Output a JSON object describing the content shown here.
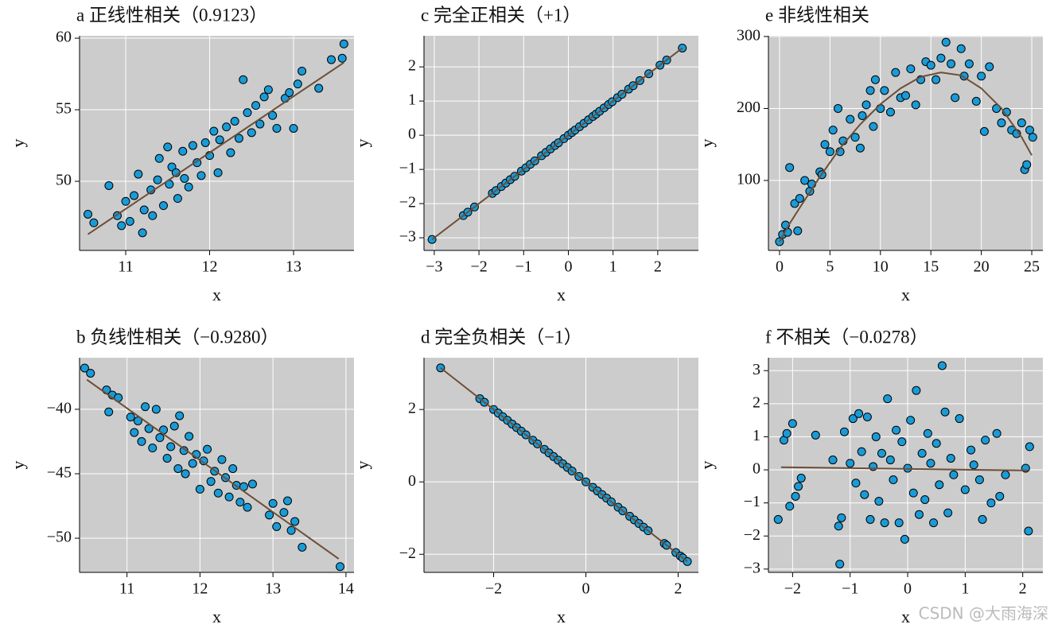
{
  "chart_data": [
    {
      "type": "scatter",
      "title": "a  正线性相关（0.9123）",
      "x_label": "x",
      "y_label": "y",
      "x": [
        10.55,
        10.62,
        10.8,
        10.9,
        10.95,
        11.0,
        11.05,
        11.1,
        11.15,
        11.2,
        11.22,
        11.3,
        11.32,
        11.38,
        11.4,
        11.45,
        11.5,
        11.52,
        11.55,
        11.6,
        11.62,
        11.68,
        11.7,
        11.75,
        11.8,
        11.85,
        11.9,
        11.95,
        12.0,
        12.05,
        12.1,
        12.12,
        12.2,
        12.25,
        12.3,
        12.35,
        12.4,
        12.45,
        12.5,
        12.55,
        12.6,
        12.65,
        12.7,
        12.75,
        12.8,
        12.9,
        12.95,
        13.0,
        13.05,
        13.1,
        13.3,
        13.45,
        13.58,
        13.6
      ],
      "values": [
        47.7,
        47.1,
        49.7,
        47.6,
        46.9,
        48.6,
        47.2,
        49.0,
        50.5,
        46.4,
        48.0,
        49.4,
        47.6,
        50.1,
        51.6,
        48.3,
        52.4,
        49.8,
        51.0,
        50.6,
        48.8,
        52.1,
        50.2,
        49.6,
        52.5,
        51.3,
        50.4,
        52.7,
        51.8,
        53.5,
        50.6,
        52.9,
        53.8,
        52.0,
        54.2,
        53.0,
        57.1,
        54.8,
        53.4,
        55.3,
        54.0,
        55.9,
        56.4,
        54.6,
        53.7,
        55.8,
        56.2,
        53.7,
        56.8,
        57.7,
        56.5,
        58.5,
        58.6,
        59.6
      ],
      "fit": {
        "x": [
          10.55,
          13.6
        ],
        "values": [
          46.3,
          58.3
        ]
      },
      "color": "#1a9bd7",
      "edge_color": "#000000",
      "fit_color": "#6e4e37",
      "xlim": [
        10.45,
        13.72
      ],
      "ylim": [
        45.17,
        60.17
      ],
      "xticks": [
        11,
        12,
        13
      ],
      "yticks": [
        50,
        55,
        60
      ],
      "grid": true
    },
    {
      "type": "scatter",
      "title": "c  完全正相关（+1）",
      "x_label": "x",
      "y_label": "y",
      "x": [
        -3.05,
        -2.35,
        -2.25,
        -2.1,
        -1.7,
        -1.62,
        -1.5,
        -1.4,
        -1.3,
        -1.2,
        -1.05,
        -0.95,
        -0.85,
        -0.75,
        -0.6,
        -0.5,
        -0.4,
        -0.3,
        -0.22,
        -0.1,
        0.0,
        0.08,
        0.15,
        0.25,
        0.35,
        0.45,
        0.55,
        0.62,
        0.7,
        0.8,
        0.9,
        0.98,
        1.1,
        1.2,
        1.35,
        1.45,
        1.6,
        1.8,
        2.05,
        2.2,
        2.55
      ],
      "values": [
        -3.05,
        -2.35,
        -2.25,
        -2.1,
        -1.7,
        -1.62,
        -1.5,
        -1.4,
        -1.3,
        -1.2,
        -1.05,
        -0.95,
        -0.85,
        -0.75,
        -0.6,
        -0.5,
        -0.4,
        -0.3,
        -0.22,
        -0.1,
        0.0,
        0.08,
        0.15,
        0.25,
        0.35,
        0.45,
        0.55,
        0.62,
        0.7,
        0.8,
        0.9,
        0.98,
        1.1,
        1.2,
        1.35,
        1.45,
        1.6,
        1.8,
        2.05,
        2.2,
        2.55
      ],
      "fit": {
        "x": [
          -3.05,
          2.55
        ],
        "values": [
          -3.05,
          2.55
        ]
      },
      "color": "#1a9bd7",
      "edge_color": "#000000",
      "fit_color": "#6e4e37",
      "xlim": [
        -3.23,
        2.91
      ],
      "ylim": [
        -3.37,
        2.91
      ],
      "xticks": [
        {
          "value": -3,
          "label": "−3"
        },
        {
          "value": -2,
          "label": "−2"
        },
        {
          "value": -1,
          "label": "−1"
        },
        0,
        1,
        2
      ],
      "yticks": [
        {
          "value": -3,
          "label": "−3"
        },
        {
          "value": -2,
          "label": "−2"
        },
        {
          "value": -1,
          "label": "−1"
        },
        0,
        1,
        2
      ],
      "grid": true
    },
    {
      "type": "scatter",
      "title": "e  非线性相关",
      "x_label": "x",
      "y_label": "y",
      "x": [
        0,
        0.3,
        0.6,
        0.8,
        1.0,
        1.5,
        1.8,
        2.0,
        2.5,
        3,
        3.2,
        4,
        4.2,
        4.5,
        5,
        5.3,
        5.8,
        6,
        6.3,
        7,
        7.5,
        8,
        8.2,
        8.6,
        9,
        9.3,
        9.5,
        10,
        10.4,
        11,
        11.5,
        12,
        12.5,
        13,
        13.5,
        14,
        14.5,
        15,
        15.5,
        16,
        16.5,
        17,
        17.4,
        18,
        18.3,
        18.8,
        19.5,
        20,
        20.3,
        20.8,
        21.5,
        22,
        22.5,
        23,
        23.5,
        24,
        24.3,
        24.5,
        24.8,
        25.1
      ],
      "values": [
        15,
        25,
        38,
        28,
        118,
        68,
        30,
        75,
        100,
        85,
        95,
        112,
        108,
        150,
        140,
        170,
        200,
        140,
        155,
        185,
        160,
        145,
        190,
        205,
        225,
        175,
        240,
        200,
        225,
        195,
        250,
        215,
        218,
        255,
        205,
        240,
        265,
        260,
        240,
        270,
        292,
        262,
        215,
        283,
        245,
        262,
        210,
        245,
        168,
        258,
        200,
        180,
        195,
        170,
        165,
        180,
        115,
        122,
        170,
        160
      ],
      "fit": {
        "x": [
          0,
          1,
          2,
          4,
          6,
          8,
          10,
          12,
          14,
          16,
          18,
          20,
          22,
          24,
          25
        ],
        "values": [
          15,
          40,
          62,
          105,
          145,
          178,
          206,
          228,
          244,
          250,
          246,
          228,
          200,
          160,
          135
        ]
      },
      "color": "#1a9bd7",
      "edge_color": "#000000",
      "fit_color": "#6e4e37",
      "xlim": [
        -1.1,
        26.1
      ],
      "ylim": [
        2.8,
        301
      ],
      "xticks": [
        0,
        5,
        10,
        15,
        20,
        25
      ],
      "yticks": [
        100,
        200,
        300
      ],
      "grid": true
    },
    {
      "type": "scatter",
      "title": "b  负线性相关（−0.9280）",
      "x_label": "x",
      "y_label": "y",
      "x": [
        10.42,
        10.5,
        10.72,
        10.75,
        10.8,
        10.88,
        11.05,
        11.1,
        11.15,
        11.2,
        11.25,
        11.3,
        11.35,
        11.4,
        11.45,
        11.5,
        11.55,
        11.6,
        11.65,
        11.7,
        11.72,
        11.78,
        11.8,
        11.85,
        11.9,
        11.95,
        12.0,
        12.05,
        12.1,
        12.15,
        12.2,
        12.25,
        12.3,
        12.35,
        12.4,
        12.45,
        12.5,
        12.55,
        12.6,
        12.65,
        12.72,
        12.95,
        13.0,
        13.05,
        13.15,
        13.2,
        13.25,
        13.3,
        13.4,
        13.92
      ],
      "values": [
        -36.8,
        -37.2,
        -38.5,
        -40.2,
        -38.9,
        -39.1,
        -40.6,
        -41.8,
        -40.9,
        -42.5,
        -39.8,
        -41.5,
        -43.0,
        -40.0,
        -42.2,
        -41.6,
        -43.8,
        -42.9,
        -41.3,
        -44.6,
        -40.5,
        -43.2,
        -45.0,
        -42.1,
        -44.2,
        -43.5,
        -46.2,
        -44.0,
        -43.1,
        -45.6,
        -44.8,
        -46.5,
        -43.9,
        -45.3,
        -46.8,
        -44.6,
        -45.9,
        -47.2,
        -46.0,
        -47.6,
        -45.8,
        -48.2,
        -47.3,
        -49.1,
        -48.0,
        -47.1,
        -49.4,
        -48.7,
        -50.7,
        -52.2
      ],
      "fit": {
        "x": [
          10.45,
          13.9
        ],
        "values": [
          -37.7,
          -51.6
        ]
      },
      "color": "#1a9bd7",
      "edge_color": "#000000",
      "fit_color": "#6e4e37",
      "xlim": [
        10.35,
        14.11
      ],
      "ylim": [
        -52.65,
        -36
      ],
      "xticks": [
        11,
        12,
        13,
        14
      ],
      "yticks": [
        {
          "value": -50,
          "label": "−50"
        },
        {
          "value": -45,
          "label": "−45"
        },
        {
          "value": -40,
          "label": "−40"
        }
      ],
      "grid": true
    },
    {
      "type": "scatter",
      "title": "d  完全负相关（−1）",
      "x_label": "x",
      "y_label": "y",
      "x": [
        -3.15,
        -2.3,
        -2.2,
        -2.0,
        -1.9,
        -1.8,
        -1.7,
        -1.6,
        -1.5,
        -1.4,
        -1.3,
        -1.15,
        -1.05,
        -0.9,
        -0.8,
        -0.7,
        -0.6,
        -0.5,
        -0.4,
        -0.3,
        -0.15,
        0.0,
        0.15,
        0.25,
        0.35,
        0.45,
        0.55,
        0.7,
        0.8,
        0.95,
        1.05,
        1.15,
        1.25,
        1.35,
        1.7,
        1.75,
        1.95,
        2.05,
        2.1,
        2.2
      ],
      "values": [
        3.15,
        2.3,
        2.2,
        2.0,
        1.9,
        1.8,
        1.7,
        1.6,
        1.5,
        1.4,
        1.3,
        1.15,
        1.05,
        0.9,
        0.8,
        0.7,
        0.6,
        0.5,
        0.4,
        0.3,
        0.15,
        0.0,
        -0.15,
        -0.25,
        -0.35,
        -0.45,
        -0.55,
        -0.7,
        -0.8,
        -0.95,
        -1.05,
        -1.15,
        -1.25,
        -1.35,
        -1.7,
        -1.75,
        -1.95,
        -2.05,
        -2.1,
        -2.2
      ],
      "fit": {
        "x": [
          -3.15,
          2.2
        ],
        "values": [
          3.15,
          -2.2
        ]
      },
      "color": "#1a9bd7",
      "edge_color": "#000000",
      "fit_color": "#6e4e37",
      "xlim": [
        -3.51,
        2.44
      ],
      "ylim": [
        -2.5,
        3.43
      ],
      "xticks": [
        {
          "value": -2,
          "label": "−2"
        },
        0,
        2
      ],
      "yticks": [
        {
          "value": -2,
          "label": "−2"
        },
        0,
        2
      ],
      "grid": true
    },
    {
      "type": "scatter",
      "title": "f  不相关（−0.0278）",
      "x_label": "x",
      "y_label": "y",
      "x": [
        -2.25,
        -2.15,
        -2.1,
        -2.05,
        -2.0,
        -1.95,
        -1.9,
        -1.85,
        -1.6,
        -1.3,
        -1.2,
        -1.18,
        -1.15,
        -1.1,
        -1.0,
        -0.95,
        -0.9,
        -0.85,
        -0.8,
        -0.75,
        -0.7,
        -0.65,
        -0.6,
        -0.55,
        -0.5,
        -0.45,
        -0.4,
        -0.35,
        -0.3,
        -0.25,
        -0.2,
        -0.15,
        -0.1,
        -0.05,
        0.0,
        0.05,
        0.1,
        0.15,
        0.2,
        0.25,
        0.3,
        0.35,
        0.4,
        0.45,
        0.5,
        0.55,
        0.6,
        0.65,
        0.7,
        0.75,
        0.8,
        0.9,
        1.0,
        1.1,
        1.15,
        1.25,
        1.3,
        1.35,
        1.45,
        1.55,
        1.6,
        1.7,
        2.05,
        2.1,
        2.12
      ],
      "values": [
        -1.5,
        0.9,
        1.1,
        -1.1,
        1.4,
        -0.8,
        -0.5,
        -0.25,
        1.05,
        0.3,
        -1.7,
        -2.85,
        -1.45,
        1.15,
        0.2,
        1.55,
        -0.4,
        1.7,
        0.55,
        -0.75,
        1.6,
        -1.5,
        0.1,
        1.0,
        -0.95,
        0.5,
        -1.6,
        2.15,
        0.3,
        -0.3,
        1.2,
        -1.6,
        0.85,
        -2.1,
        0.05,
        1.5,
        -0.7,
        2.4,
        -1.35,
        0.5,
        -0.9,
        1.1,
        0.2,
        -1.6,
        0.8,
        -0.45,
        3.15,
        1.75,
        -1.3,
        0.35,
        -0.15,
        1.55,
        -0.6,
        0.6,
        0.15,
        -0.3,
        -1.5,
        0.9,
        -1.0,
        1.1,
        -0.8,
        -0.15,
        0.05,
        -1.85,
        0.7
      ],
      "fit": {
        "x": [
          -2.2,
          2.1
        ],
        "values": [
          0.08,
          -0.02
        ]
      },
      "color": "#1a9bd7",
      "edge_color": "#000000",
      "fit_color": "#6e4e37",
      "xlim": [
        -2.42,
        2.35
      ],
      "ylim": [
        -3.1,
        3.39
      ],
      "xticks": [
        {
          "value": -2,
          "label": "−2"
        },
        {
          "value": -1,
          "label": "−1"
        },
        0,
        1,
        2
      ],
      "yticks": [
        {
          "value": -3,
          "label": "−3"
        },
        {
          "value": -2,
          "label": "−2"
        },
        {
          "value": -1,
          "label": "−1"
        },
        0,
        1,
        2,
        3
      ],
      "grid": true
    }
  ],
  "watermark": "CSDN @大雨海深"
}
